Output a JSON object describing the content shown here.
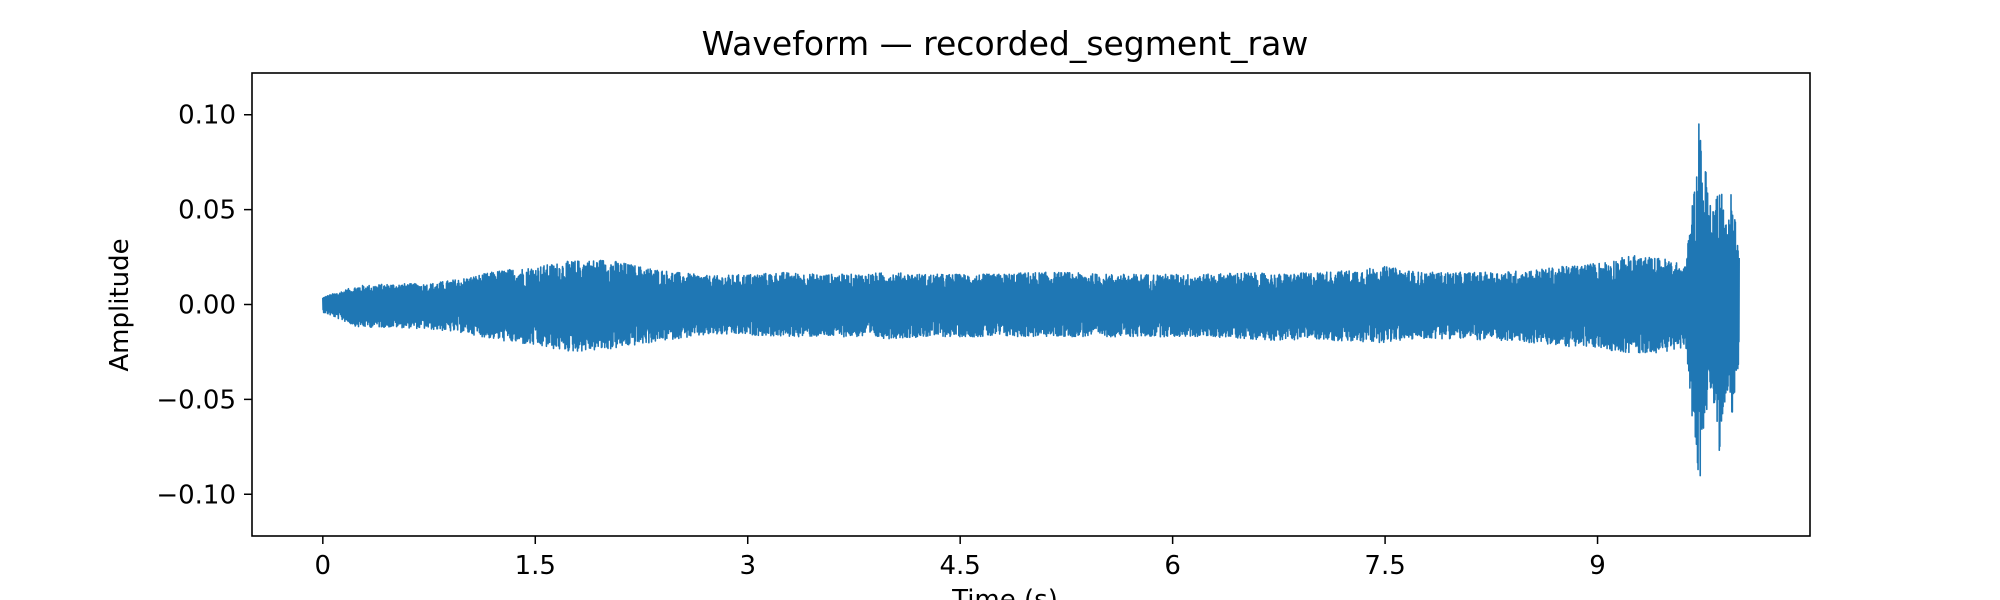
{
  "chart_data": {
    "type": "line",
    "title": "Waveform — recorded_segment_raw",
    "xlabel": "Time (s)",
    "ylabel": "Amplitude",
    "xlim": [
      -0.5,
      10.5
    ],
    "ylim": [
      -0.122,
      0.122
    ],
    "grid": false,
    "legend": "none",
    "xticks": [
      0,
      1.5,
      3,
      4.5,
      6,
      7.5,
      9
    ],
    "xtick_labels": [
      "0",
      "1.5",
      "3",
      "4.5",
      "6",
      "7.5",
      "9"
    ],
    "yticks": [
      0.1,
      0.05,
      0,
      -0.05,
      -0.1
    ],
    "ytick_labels": [
      "0.10",
      "0.05",
      "0.00",
      "−0.05",
      "−0.10"
    ],
    "colors": {
      "series": "#1f77b4",
      "axes": "#000000",
      "background": "#ffffff"
    },
    "series": [
      {
        "x": [
          0.0,
          0.25,
          0.5,
          0.75,
          1.0,
          1.25,
          1.5,
          1.75,
          2.0,
          2.25,
          2.5,
          2.75,
          3.0,
          3.25,
          3.5,
          3.75,
          4.0,
          4.25,
          4.5,
          4.75,
          5.0,
          5.25,
          5.5,
          5.75,
          6.0,
          6.25,
          6.5,
          6.75,
          7.0,
          7.25,
          7.5,
          7.75,
          8.0,
          8.25,
          8.5,
          8.75,
          9.0,
          9.25,
          9.5,
          9.62,
          9.66,
          9.7,
          9.72,
          9.74,
          9.76,
          9.78,
          9.8,
          9.82,
          9.84,
          9.86,
          9.88,
          9.9,
          9.92,
          9.94,
          9.96,
          9.98,
          10.0
        ],
        "y_upper": [
          0.004,
          0.01,
          0.011,
          0.011,
          0.014,
          0.018,
          0.02,
          0.023,
          0.024,
          0.02,
          0.017,
          0.015,
          0.016,
          0.017,
          0.016,
          0.016,
          0.017,
          0.016,
          0.016,
          0.016,
          0.017,
          0.017,
          0.016,
          0.016,
          0.016,
          0.016,
          0.017,
          0.016,
          0.017,
          0.018,
          0.02,
          0.017,
          0.017,
          0.017,
          0.018,
          0.02,
          0.022,
          0.026,
          0.024,
          0.02,
          0.05,
          0.07,
          0.11,
          0.07,
          0.075,
          0.062,
          0.05,
          0.055,
          0.058,
          0.075,
          0.06,
          0.045,
          0.04,
          0.065,
          0.055,
          0.04,
          0.03
        ],
        "y_lower": [
          -0.004,
          -0.012,
          -0.012,
          -0.013,
          -0.015,
          -0.019,
          -0.022,
          -0.025,
          -0.024,
          -0.021,
          -0.018,
          -0.016,
          -0.016,
          -0.017,
          -0.017,
          -0.017,
          -0.018,
          -0.017,
          -0.017,
          -0.017,
          -0.017,
          -0.017,
          -0.017,
          -0.017,
          -0.017,
          -0.017,
          -0.018,
          -0.019,
          -0.018,
          -0.02,
          -0.02,
          -0.018,
          -0.018,
          -0.019,
          -0.02,
          -0.022,
          -0.023,
          -0.026,
          -0.025,
          -0.022,
          -0.055,
          -0.075,
          -0.112,
          -0.065,
          -0.07,
          -0.06,
          -0.05,
          -0.055,
          -0.06,
          -0.078,
          -0.065,
          -0.05,
          -0.045,
          -0.062,
          -0.055,
          -0.04,
          -0.03
        ]
      }
    ]
  }
}
